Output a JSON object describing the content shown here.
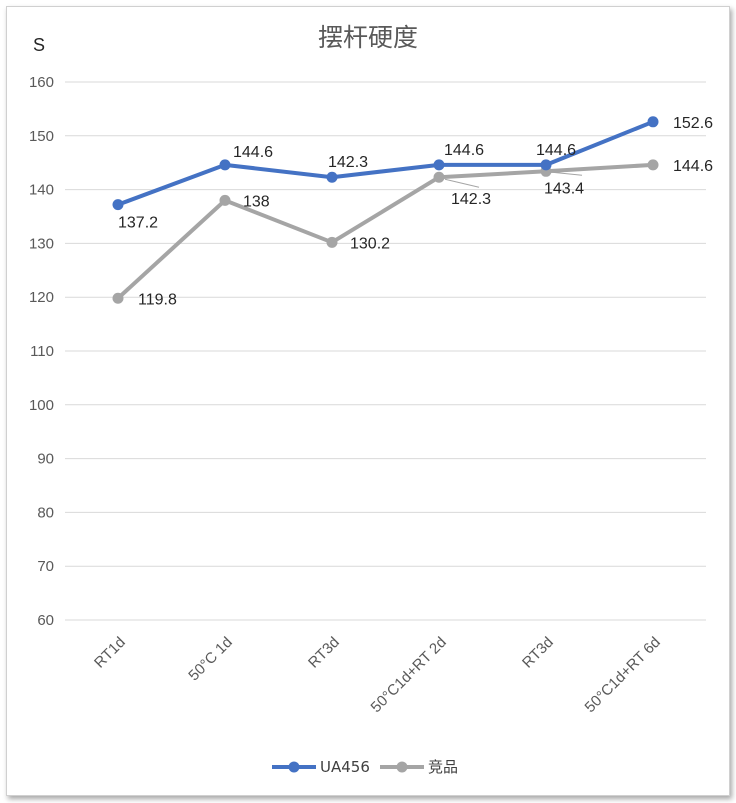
{
  "chart_data": {
    "type": "line",
    "title": "摆杆硬度",
    "ylabel": "S",
    "xlabel": "",
    "categories": [
      "RT1d",
      "50°C 1d",
      "RT3d",
      "50°C1d+RT 2d",
      "RT3d",
      "50°C1d+RT 6d"
    ],
    "ylim": [
      60,
      160
    ],
    "yticks": [
      60,
      70,
      80,
      90,
      100,
      110,
      120,
      130,
      140,
      150,
      160
    ],
    "grid": true,
    "legend": "bottom",
    "series": [
      {
        "name": "UA456",
        "color": "#4472C4",
        "values": [
          137.2,
          144.6,
          142.3,
          144.6,
          144.6,
          152.6
        ],
        "labels": [
          "137.2",
          "144.6",
          "142.3",
          "144.6",
          "144.6",
          "152.6"
        ]
      },
      {
        "name": "竞品",
        "color": "#A5A5A5",
        "values": [
          119.8,
          138,
          130.2,
          142.3,
          143.4,
          144.6
        ],
        "labels": [
          "119.8",
          "138",
          "130.2",
          "142.3",
          "143.4",
          "144.6"
        ]
      }
    ]
  }
}
